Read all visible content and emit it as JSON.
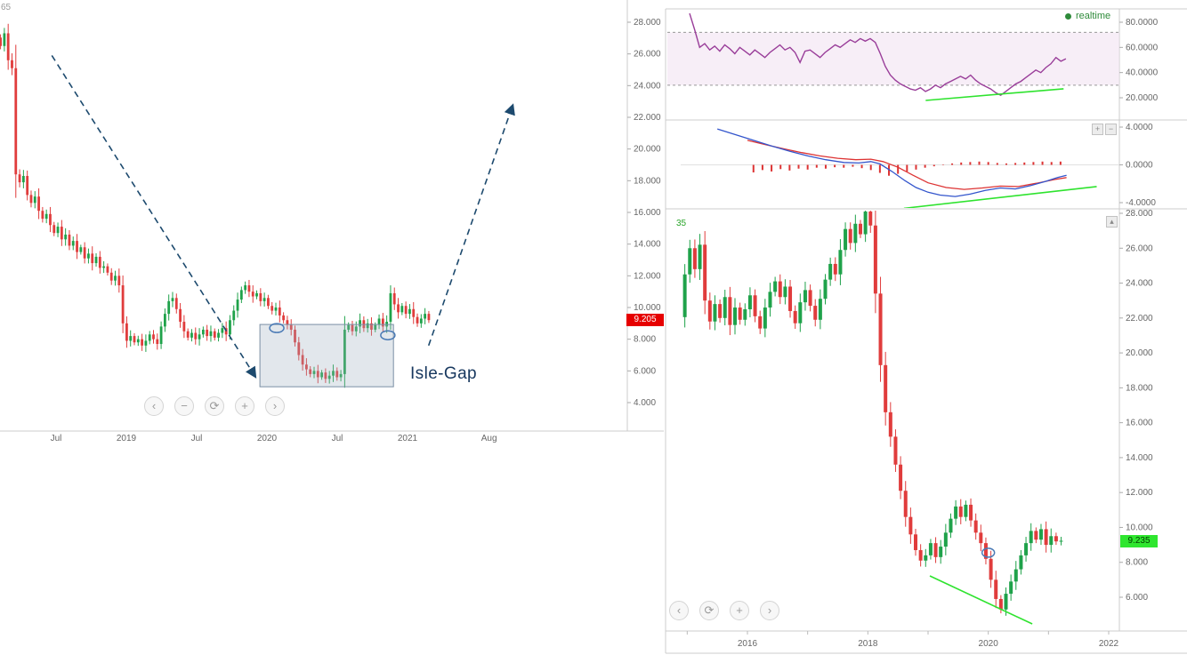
{
  "left_chart": {
    "corner_fragment": "65",
    "annotation_label": "Isle-Gap",
    "price_tag": "9.205",
    "nav_buttons": [
      "‹",
      "−",
      "⟳",
      "+",
      "›"
    ],
    "y_ticks": [
      "28.000",
      "26.000",
      "24.000",
      "22.000",
      "20.000",
      "18.000",
      "16.000",
      "14.000",
      "12.000",
      "10.000",
      "8.000",
      "6.000",
      "4.000"
    ],
    "x_ticks": [
      {
        "label": "Jul",
        "t": 2018.5
      },
      {
        "label": "2019",
        "t": 2019.0
      },
      {
        "label": "Jul",
        "t": 2019.5
      },
      {
        "label": "2020",
        "t": 2020.0
      },
      {
        "label": "Jul",
        "t": 2020.5
      },
      {
        "label": "2021",
        "t": 2021.0
      },
      {
        "label": "Aug",
        "t": 2021.58
      }
    ]
  },
  "right_panel": {
    "realtime_label": "realtime",
    "corner_fragment": "35",
    "price_tag": "9.235",
    "nav_buttons": [
      "‹",
      "⟳",
      "+",
      "›"
    ],
    "indicator_buttons": [
      "+",
      "−"
    ],
    "expand_button": "▴",
    "rsi_y_ticks": [
      "80.0000",
      "60.0000",
      "40.0000",
      "20.0000"
    ],
    "macd_y_ticks": [
      "4.0000",
      "0.0000",
      "-4.0000"
    ],
    "price_y_ticks": [
      "28.000",
      "26.000",
      "24.000",
      "22.000",
      "20.000",
      "18.000",
      "16.000",
      "14.000",
      "12.000",
      "10.000",
      "8.000",
      "6.000"
    ],
    "x_ticks": [
      {
        "label": "2016",
        "t": 2016
      },
      {
        "label": "2018",
        "t": 2018
      },
      {
        "label": "2020",
        "t": 2020
      },
      {
        "label": "2022",
        "t": 2022
      }
    ]
  },
  "colors": {
    "candle_up": "#1fa24a",
    "candle_down": "#e03c3c",
    "rsi_line": "#993d99",
    "macd_blue": "#3355cc",
    "macd_red": "#dd3333",
    "trend_green": "#2ee32e",
    "arrow": "#1d4a6e",
    "ellipse": "#4a7ab5",
    "box_fill": "#9fb0c0",
    "box_stroke": "#7a8fa5",
    "band_fill": "#f2e2f2",
    "band_line": "#999999",
    "tag_red": "#e60000",
    "tag_green": "#2fe62f",
    "axis_text": "#666666",
    "grid_line": "#cccccc"
  },
  "chart_data": [
    {
      "id": "price-weekly",
      "type": "candlestick",
      "title": "",
      "x_start": 2018.105,
      "x_step": 0.0272,
      "ylim": [
        4,
        28
      ],
      "last_price": 9.205,
      "closes": [
        26.5,
        27.3,
        25.6,
        25.1,
        18.4,
        17.9,
        18.3,
        17.1,
        16.6,
        17.0,
        16.1,
        15.6,
        15.9,
        15.2,
        14.7,
        15.1,
        14.3,
        14.6,
        13.9,
        14.2,
        13.5,
        13.8,
        13.1,
        13.4,
        12.8,
        13.2,
        12.5,
        12.6,
        12.2,
        11.7,
        12.0,
        11.4,
        9.0,
        7.9,
        8.2,
        7.8,
        8.0,
        7.6,
        7.9,
        8.3,
        8.0,
        7.7,
        8.8,
        9.6,
        10.4,
        10.6,
        9.9,
        9.1,
        8.5,
        8.1,
        8.4,
        8.0,
        8.3,
        8.6,
        8.2,
        8.5,
        8.1,
        8.4,
        8.7,
        8.3,
        9.2,
        9.8,
        10.5,
        11.1,
        11.4,
        11.0,
        10.7,
        10.9,
        10.4,
        10.6,
        10.1,
        9.8,
        10.0,
        9.5,
        9.2,
        8.9,
        8.6,
        7.8,
        7.0,
        6.4,
        6.1,
        5.8,
        6.0,
        5.6,
        5.9,
        5.5,
        5.7,
        6.0,
        5.6,
        5.8,
        8.6,
        8.9,
        8.5,
        8.8,
        9.2,
        8.7,
        9.0,
        8.6,
        8.9,
        9.3,
        8.8,
        9.1,
        10.9,
        10.2,
        9.7,
        10.1,
        9.6,
        9.9,
        9.4,
        9.0,
        9.3,
        9.6,
        9.205
      ],
      "first_open_factor": 1.02,
      "annotations": {
        "arrow_down": {
          "from": [
            2018.47,
            25.9
          ],
          "to": [
            2019.92,
            5.6
          ]
        },
        "arrow_up": {
          "from": [
            2021.15,
            7.6
          ],
          "to": [
            2021.75,
            22.8
          ]
        },
        "gap_box": {
          "x": [
            2019.95,
            2020.9
          ],
          "y": [
            5.0,
            8.93
          ],
          "label": "Isle-Gap"
        },
        "ellipses": [
          [
            2020.07,
            8.7
          ],
          [
            2020.86,
            8.25
          ]
        ]
      }
    },
    {
      "id": "rsi-monthly",
      "type": "line",
      "title": "",
      "x_start": 2015.04,
      "x_step": 0.08333,
      "ylim": [
        20,
        80
      ],
      "band": [
        30,
        72
      ],
      "values": [
        87,
        74,
        60,
        63,
        58,
        61,
        57,
        62,
        59,
        55,
        60,
        57,
        54,
        58,
        55,
        52,
        56,
        59,
        62,
        58,
        60,
        56,
        48,
        57,
        58,
        55,
        52,
        56,
        59,
        62,
        60,
        63,
        66,
        64,
        67,
        65,
        67,
        64,
        55,
        45,
        38,
        34,
        31,
        29,
        27,
        26,
        28,
        25,
        27,
        30,
        28,
        31,
        33,
        35,
        37,
        35,
        38,
        34,
        31,
        29,
        27,
        24,
        22,
        25,
        28,
        31,
        33,
        36,
        39,
        42,
        40,
        44,
        47,
        52,
        49,
        51
      ],
      "trendline": [
        [
          2018.96,
          17.9
        ],
        [
          2021.25,
          27.1
        ]
      ]
    },
    {
      "id": "macd-monthly",
      "type": "macd",
      "title": "",
      "ylim": [
        -4,
        4
      ],
      "blue": [
        [
          2015.5,
          3.8
        ],
        [
          2015.8,
          3.2
        ],
        [
          2016.1,
          2.6
        ],
        [
          2016.4,
          2.0
        ],
        [
          2016.7,
          1.45
        ],
        [
          2017.0,
          0.95
        ],
        [
          2017.3,
          0.55
        ],
        [
          2017.6,
          0.25
        ],
        [
          2017.85,
          0.2
        ],
        [
          2018.05,
          0.35
        ],
        [
          2018.2,
          0.1
        ],
        [
          2018.4,
          -0.7
        ],
        [
          2018.6,
          -1.6
        ],
        [
          2018.8,
          -2.4
        ],
        [
          2019.0,
          -2.9
        ],
        [
          2019.2,
          -3.2
        ],
        [
          2019.45,
          -3.35
        ],
        [
          2019.7,
          -3.1
        ],
        [
          2019.95,
          -2.7
        ],
        [
          2020.2,
          -2.45
        ],
        [
          2020.45,
          -2.55
        ],
        [
          2020.7,
          -2.2
        ],
        [
          2020.95,
          -1.75
        ],
        [
          2021.15,
          -1.35
        ],
        [
          2021.3,
          -1.1
        ]
      ],
      "red": [
        [
          2016.0,
          2.6
        ],
        [
          2016.3,
          2.15
        ],
        [
          2016.6,
          1.7
        ],
        [
          2016.9,
          1.3
        ],
        [
          2017.2,
          0.95
        ],
        [
          2017.5,
          0.7
        ],
        [
          2017.8,
          0.55
        ],
        [
          2018.05,
          0.6
        ],
        [
          2018.25,
          0.35
        ],
        [
          2018.5,
          -0.25
        ],
        [
          2018.75,
          -1.1
        ],
        [
          2019.0,
          -1.9
        ],
        [
          2019.3,
          -2.4
        ],
        [
          2019.6,
          -2.6
        ],
        [
          2019.9,
          -2.45
        ],
        [
          2020.2,
          -2.25
        ],
        [
          2020.5,
          -2.3
        ],
        [
          2020.8,
          -1.95
        ],
        [
          2021.1,
          -1.55
        ],
        [
          2021.3,
          -1.35
        ]
      ],
      "histogram": [
        [
          2016.1,
          -0.8
        ],
        [
          2016.25,
          -0.55
        ],
        [
          2016.4,
          -0.7
        ],
        [
          2016.55,
          -0.45
        ],
        [
          2016.7,
          -0.6
        ],
        [
          2016.85,
          -0.4
        ],
        [
          2017.0,
          -0.5
        ],
        [
          2017.15,
          -0.3
        ],
        [
          2017.3,
          -0.4
        ],
        [
          2017.45,
          -0.25
        ],
        [
          2017.6,
          -0.3
        ],
        [
          2017.75,
          -0.2
        ],
        [
          2017.9,
          -0.35
        ],
        [
          2018.05,
          -0.55
        ],
        [
          2018.2,
          -0.85
        ],
        [
          2018.35,
          -1.15
        ],
        [
          2018.5,
          -0.95
        ],
        [
          2018.65,
          -0.7
        ],
        [
          2018.8,
          -0.5
        ],
        [
          2018.95,
          -0.3
        ],
        [
          2019.1,
          -0.15
        ],
        [
          2019.25,
          0.05
        ],
        [
          2019.4,
          0.15
        ],
        [
          2019.55,
          0.25
        ],
        [
          2019.7,
          0.3
        ],
        [
          2019.85,
          0.35
        ],
        [
          2020.0,
          0.3
        ],
        [
          2020.15,
          0.2
        ],
        [
          2020.3,
          0.15
        ],
        [
          2020.45,
          0.2
        ],
        [
          2020.6,
          0.25
        ],
        [
          2020.75,
          0.3
        ],
        [
          2020.9,
          0.35
        ],
        [
          2021.05,
          0.3
        ],
        [
          2021.2,
          0.35
        ]
      ],
      "trendline": [
        [
          2018.6,
          -4.6
        ],
        [
          2021.8,
          -2.3
        ]
      ]
    },
    {
      "id": "price-monthly",
      "type": "candlestick",
      "title": "",
      "x_start": 2014.96,
      "x_step": 0.08333,
      "ylim": [
        6,
        28
      ],
      "last_price": 9.235,
      "closes": [
        24.5,
        26.0,
        24.8,
        26.2,
        23.0,
        21.8,
        22.8,
        22.0,
        23.2,
        21.6,
        22.6,
        21.9,
        22.5,
        23.3,
        22.1,
        21.4,
        22.6,
        23.5,
        24.1,
        23.2,
        23.8,
        22.4,
        21.7,
        22.9,
        23.6,
        22.7,
        21.9,
        23.1,
        24.2,
        25.1,
        24.5,
        25.9,
        27.1,
        26.3,
        27.4,
        26.8,
        28.1,
        27.3,
        23.4,
        19.3,
        16.6,
        15.2,
        13.6,
        12.1,
        10.6,
        9.6,
        8.7,
        8.1,
        8.4,
        9.1,
        8.3,
        8.9,
        9.7,
        10.5,
        11.2,
        10.6,
        11.3,
        10.4,
        9.7,
        9.1,
        8.2,
        7.0,
        5.9,
        5.3,
        6.2,
        6.9,
        7.6,
        8.4,
        9.1,
        9.8,
        9.3,
        9.9,
        9.0,
        9.5,
        9.2,
        9.235
      ],
      "first_open_factor": 0.9,
      "trendline": [
        [
          2019.03,
          7.22
        ],
        [
          2020.73,
          4.47
        ]
      ],
      "ellipse": [
        2020.0,
        8.55
      ]
    }
  ]
}
